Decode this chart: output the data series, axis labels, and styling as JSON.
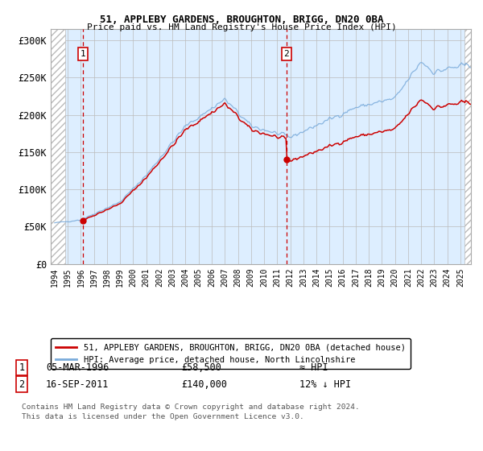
{
  "title1": "51, APPLEBY GARDENS, BROUGHTON, BRIGG, DN20 0BA",
  "title2": "Price paid vs. HM Land Registry's House Price Index (HPI)",
  "ylabel_ticks": [
    "£0",
    "£50K",
    "£100K",
    "£150K",
    "£200K",
    "£250K",
    "£300K"
  ],
  "ytick_values": [
    0,
    50000,
    100000,
    150000,
    200000,
    250000,
    300000
  ],
  "ylim": [
    0,
    315000
  ],
  "xlim_start": 1993.7,
  "xlim_end": 2025.8,
  "hpi_color": "#7aabdb",
  "price_color": "#cc0000",
  "annotation_color": "#cc0000",
  "bg_color": "#ddeeff",
  "hatch_color": "#bbbbbb",
  "grid_color": "#bbbbbb",
  "sale1_x": 1996.17,
  "sale1_y": 58500,
  "sale1_label": "1",
  "sale1_date": "05-MAR-1996",
  "sale1_price": "£58,500",
  "sale1_hpi": "≈ HPI",
  "sale2_x": 2011.71,
  "sale2_y": 140000,
  "sale2_label": "2",
  "sale2_date": "16-SEP-2011",
  "sale2_price": "£140,000",
  "sale2_hpi": "12% ↓ HPI",
  "legend_line1": "51, APPLEBY GARDENS, BROUGHTON, BRIGG, DN20 0BA (detached house)",
  "legend_line2": "HPI: Average price, detached house, North Lincolnshire",
  "footer1": "Contains HM Land Registry data © Crown copyright and database right 2024.",
  "footer2": "This data is licensed under the Open Government Licence v3.0.",
  "xtick_years": [
    1994,
    1995,
    1996,
    1997,
    1998,
    1999,
    2000,
    2001,
    2002,
    2003,
    2004,
    2005,
    2006,
    2007,
    2008,
    2009,
    2010,
    2011,
    2012,
    2013,
    2014,
    2015,
    2016,
    2017,
    2018,
    2019,
    2020,
    2021,
    2022,
    2023,
    2024,
    2025
  ]
}
